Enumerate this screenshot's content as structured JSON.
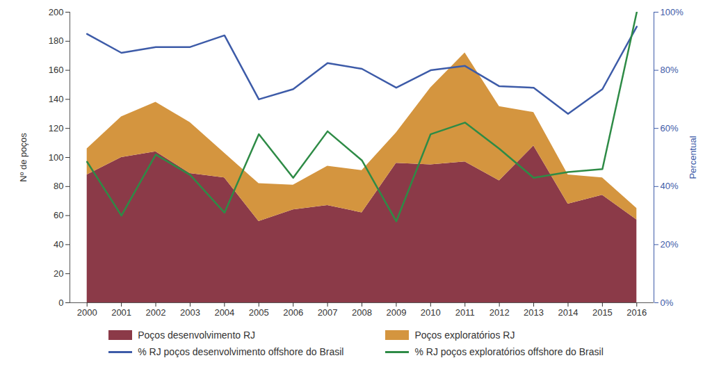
{
  "chart_data": {
    "type": "area",
    "stacked": true,
    "x": [
      2000,
      2001,
      2002,
      2003,
      2004,
      2005,
      2006,
      2007,
      2008,
      2009,
      2010,
      2011,
      2012,
      2013,
      2014,
      2015,
      2016
    ],
    "xlim": [
      1999.5,
      2016.5
    ],
    "xticks": [
      2000,
      2001,
      2002,
      2003,
      2004,
      2005,
      2006,
      2007,
      2008,
      2009,
      2010,
      2011,
      2012,
      2013,
      2014,
      2015,
      2016
    ],
    "ylim": [
      0,
      200
    ],
    "yticks": [
      0,
      20,
      40,
      60,
      80,
      100,
      120,
      140,
      160,
      180,
      200
    ],
    "ylabel": "Nº de poços",
    "y2lim": [
      0,
      100
    ],
    "y2ticks": [
      {
        "value": 0,
        "label": "0%"
      },
      {
        "value": 20,
        "label": "20%"
      },
      {
        "value": 40,
        "label": "40%"
      },
      {
        "value": 60,
        "label": "60%"
      },
      {
        "value": 80,
        "label": "80%"
      },
      {
        "value": 100,
        "label": "100%"
      }
    ],
    "y2label": "Percentual",
    "legend": "bottom",
    "series": [
      {
        "name": "Poços desenvolvimento RJ",
        "type": "area",
        "color": "#8b3a48",
        "values": [
          88,
          100,
          104,
          89,
          86,
          56,
          64,
          67,
          62,
          96,
          95,
          97,
          84,
          108,
          68,
          74,
          57
        ]
      },
      {
        "name": "Poços exploratórios RJ",
        "type": "area",
        "color": "#d4953f",
        "values": [
          18,
          28,
          34,
          35,
          17,
          26,
          17,
          27,
          29,
          21,
          53,
          75,
          51,
          23,
          20,
          12,
          8
        ]
      },
      {
        "name": "% RJ poços desenvolvimento offshore do Brasil",
        "type": "line",
        "axis": "y2",
        "color": "#3d5ba8",
        "values": [
          92.5,
          86,
          88,
          88,
          92,
          70,
          73.5,
          82.5,
          80.5,
          74,
          80,
          81.5,
          74.5,
          74,
          65,
          73.5,
          95
        ]
      },
      {
        "name": "% RJ poços exploratórios offshore do Brasil",
        "type": "line",
        "axis": "y2",
        "color": "#2e8b46",
        "values": [
          48.5,
          30,
          51,
          44,
          31,
          58,
          43,
          59,
          49,
          28,
          58,
          62,
          53,
          43,
          45,
          46,
          100
        ]
      }
    ]
  }
}
